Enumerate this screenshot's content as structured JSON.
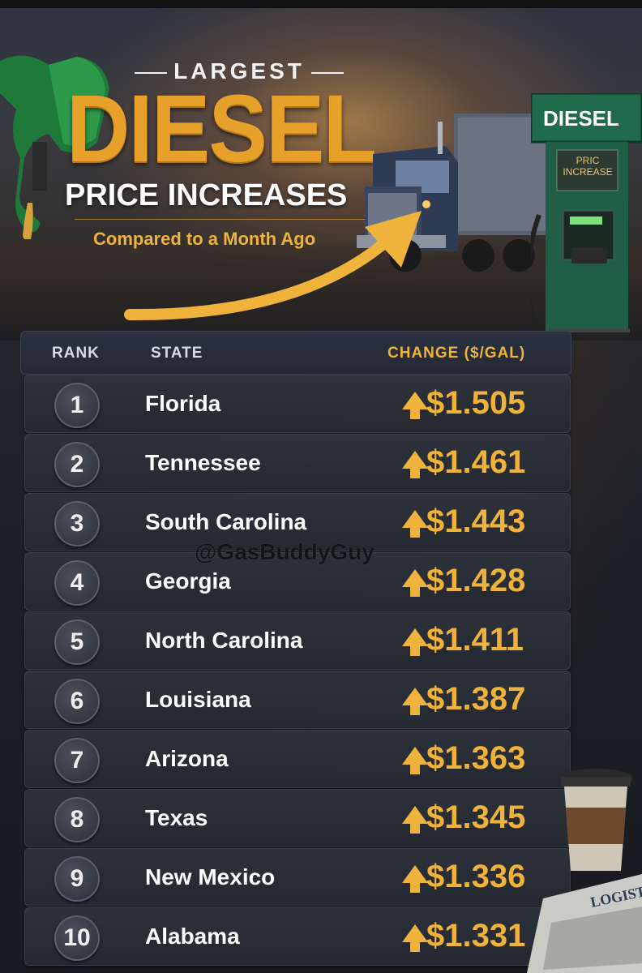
{
  "title": {
    "small": "LARGEST",
    "big": "DIESEL",
    "sub": "PRICE INCREASES",
    "tagline": "Compared to a Month Ago"
  },
  "pump_sign": {
    "label": "DIESEL",
    "sticker": "PRIC INCREASE"
  },
  "watermark": "@GasBuddyGuy",
  "table": {
    "headers": {
      "rank": "RANK",
      "state": "STATE",
      "change": "CHANGE ($/GAL)"
    },
    "rows": [
      {
        "rank": "1",
        "state": "Florida",
        "change": "$1.505"
      },
      {
        "rank": "2",
        "state": "Tennessee",
        "change": "$1.461"
      },
      {
        "rank": "3",
        "state": "South Carolina",
        "change": "$1.443"
      },
      {
        "rank": "4",
        "state": "Georgia",
        "change": "$1.428"
      },
      {
        "rank": "5",
        "state": "North Carolina",
        "change": "$1.411"
      },
      {
        "rank": "6",
        "state": "Louisiana",
        "change": "$1.387"
      },
      {
        "rank": "7",
        "state": "Arizona",
        "change": "$1.363"
      },
      {
        "rank": "8",
        "state": "Texas",
        "change": "$1.345"
      },
      {
        "rank": "9",
        "state": "New Mexico",
        "change": "$1.336"
      },
      {
        "rank": "10",
        "state": "Alabama",
        "change": "$1.331"
      }
    ]
  },
  "book_label": "LOGIST",
  "colors": {
    "accent": "#efb23a",
    "title_gold": "#e7a12a",
    "panel": "#2b3240",
    "pump_green": "#1f6b4a"
  },
  "icons": [
    "fuel-nozzle-icon",
    "truck-illustration",
    "fuel-pump-icon",
    "trend-arrow-icon",
    "up-arrow-icon",
    "coffee-cup-icon",
    "logbook-icon"
  ]
}
